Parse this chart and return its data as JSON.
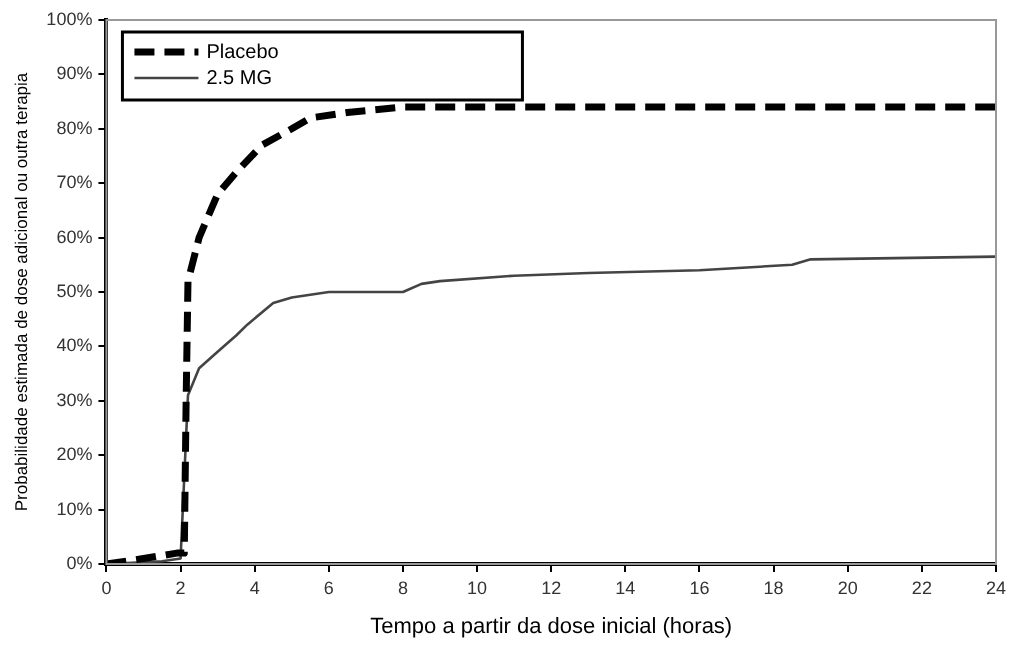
{
  "chart_data": {
    "type": "line",
    "xlabel": "Tempo a partir da dose inicial (horas)",
    "ylabel": "Probabilidade estimada de dose adicional ou outra terapia",
    "xlim": [
      0,
      24
    ],
    "xticks": [
      0,
      2,
      4,
      6,
      8,
      10,
      12,
      14,
      16,
      18,
      20,
      22,
      24
    ],
    "ylim": [
      0,
      100
    ],
    "yticks": [
      {
        "value": 0,
        "label": "0%"
      },
      {
        "value": 10,
        "label": "10%"
      },
      {
        "value": 20,
        "label": "20%"
      },
      {
        "value": 30,
        "label": "30%"
      },
      {
        "value": 40,
        "label": "40%"
      },
      {
        "value": 50,
        "label": "50%"
      },
      {
        "value": 60,
        "label": "60%"
      },
      {
        "value": 70,
        "label": "70%"
      },
      {
        "value": 80,
        "label": "80%"
      },
      {
        "value": 90,
        "label": "90%"
      },
      {
        "value": 100,
        "label": "100%"
      }
    ],
    "grid": false,
    "legend": "top left",
    "marker": "none",
    "series": [
      {
        "name": "Placebo",
        "color": "#000000",
        "line_style": "dashed",
        "x": [
          0,
          1,
          1.9,
          2.1,
          2.15,
          2.2,
          2.5,
          3,
          3.5,
          4.2,
          5,
          5.5,
          6.5,
          8,
          24
        ],
        "values": [
          0,
          1,
          2,
          2,
          30,
          52,
          60,
          68,
          72,
          77,
          80,
          82,
          83,
          84,
          84
        ]
      },
      {
        "name": "2.5 MG",
        "color": "#444444",
        "line_style": "solid",
        "x": [
          0,
          1.5,
          2,
          2.2,
          2.5,
          3,
          3.5,
          3.8,
          4.5,
          5,
          6,
          8,
          8.5,
          9,
          11,
          13,
          16,
          18.5,
          19,
          24
        ],
        "values": [
          0,
          0.5,
          1,
          31,
          36,
          39,
          42,
          44,
          48,
          49,
          50,
          50,
          51.5,
          52,
          53,
          53.5,
          54,
          55,
          56,
          56.5
        ]
      }
    ]
  }
}
